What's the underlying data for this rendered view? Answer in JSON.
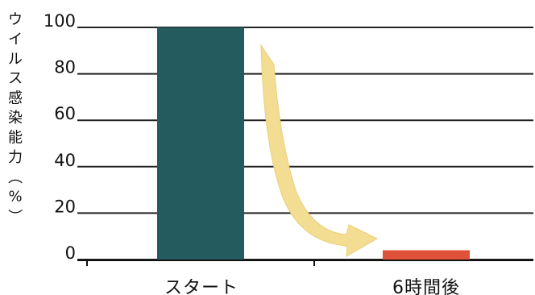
{
  "chart_data": {
    "type": "bar",
    "categories": [
      "スタート",
      "6時間後"
    ],
    "values": [
      100,
      4
    ],
    "ylabel": "ウイルス感染能力（%）",
    "ylim": [
      0,
      100
    ],
    "yticks": [
      0,
      20,
      40,
      60,
      80,
      100
    ],
    "grid": true,
    "bar_colors": [
      "#245B5E",
      "#E0513A"
    ],
    "annotation": {
      "type": "arrow",
      "from_category": "スタート",
      "to_category": "6時間後",
      "color": "#F3DD92"
    }
  }
}
